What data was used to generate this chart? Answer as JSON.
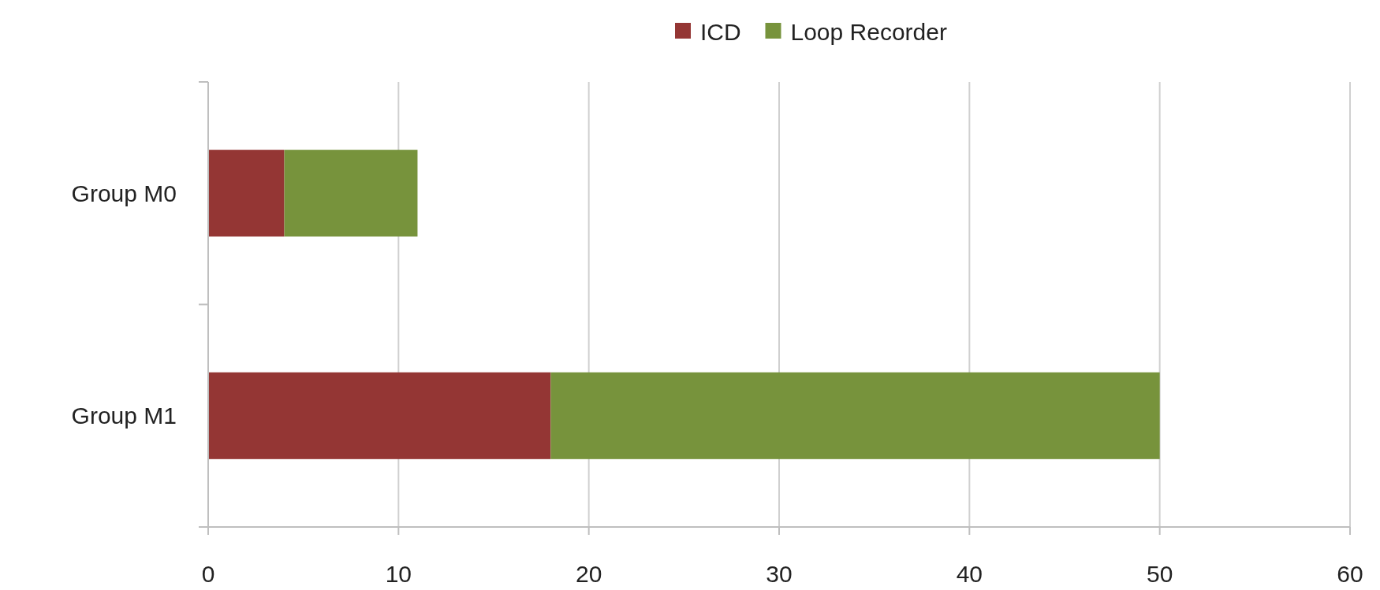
{
  "chart_data": {
    "type": "bar",
    "orientation": "horizontal",
    "stacked": true,
    "categories": [
      "Group M0",
      "Group M1"
    ],
    "series": [
      {
        "name": "ICD",
        "color": "#943634",
        "values": [
          4,
          18
        ]
      },
      {
        "name": "Loop Recorder",
        "color": "#77933c",
        "values": [
          7,
          32
        ]
      }
    ],
    "xlim": [
      0,
      60
    ],
    "xticks": [
      0,
      10,
      20,
      30,
      40,
      50,
      60
    ],
    "grid": "x",
    "legend": "top"
  }
}
